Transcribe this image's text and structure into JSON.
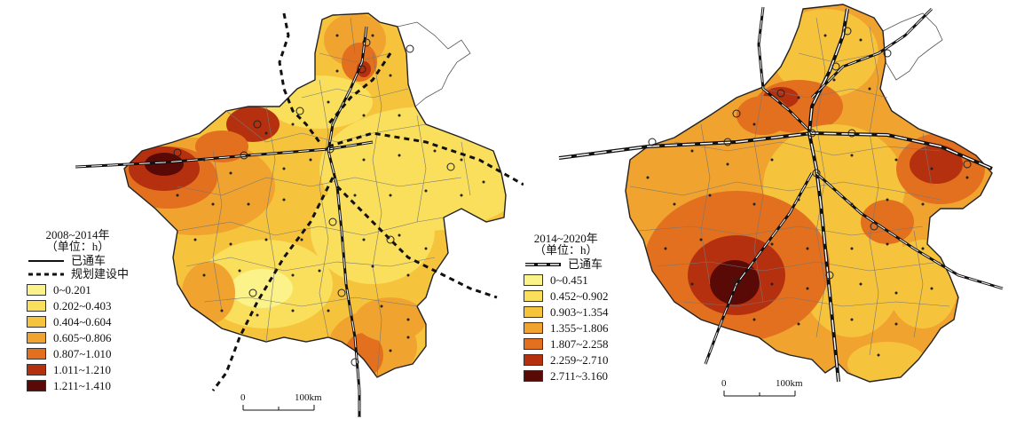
{
  "maps": [
    {
      "id": "left",
      "legend": {
        "title_line1": "2008~2014年",
        "title_line2": "（单位：h）",
        "line_items": [
          {
            "label": "已通车",
            "style": "solid"
          },
          {
            "label": "规划建设中",
            "style": "dashed"
          }
        ],
        "classes": [
          {
            "label": "0~0.201",
            "color": "#fbf28a"
          },
          {
            "label": "0.202~0.403",
            "color": "#f9df5c"
          },
          {
            "label": "0.404~0.604",
            "color": "#f6c33c"
          },
          {
            "label": "0.605~0.806",
            "color": "#f0a32e"
          },
          {
            "label": "0.807~1.010",
            "color": "#e2701f"
          },
          {
            "label": "1.011~1.210",
            "color": "#b5300f"
          },
          {
            "label": "1.211~1.410",
            "color": "#5a0a06"
          }
        ]
      },
      "scale": {
        "zero": "0",
        "distance": "100km"
      }
    },
    {
      "id": "right",
      "legend": {
        "title_line1": "2014~2020年",
        "title_line2": "（单位：h）",
        "line_items": [
          {
            "label": "已通车",
            "style": "double"
          }
        ],
        "classes": [
          {
            "label": "0~0.451",
            "color": "#fbf28a"
          },
          {
            "label": "0.452~0.902",
            "color": "#f9df5c"
          },
          {
            "label": "0.903~1.354",
            "color": "#f6c33c"
          },
          {
            "label": "1.355~1.806",
            "color": "#f0a32e"
          },
          {
            "label": "1.807~2.258",
            "color": "#e2701f"
          },
          {
            "label": "2.259~2.710",
            "color": "#b5300f"
          },
          {
            "label": "2.711~3.160",
            "color": "#5a0a06"
          }
        ]
      },
      "scale": {
        "zero": "0",
        "distance": "100km"
      }
    }
  ]
}
